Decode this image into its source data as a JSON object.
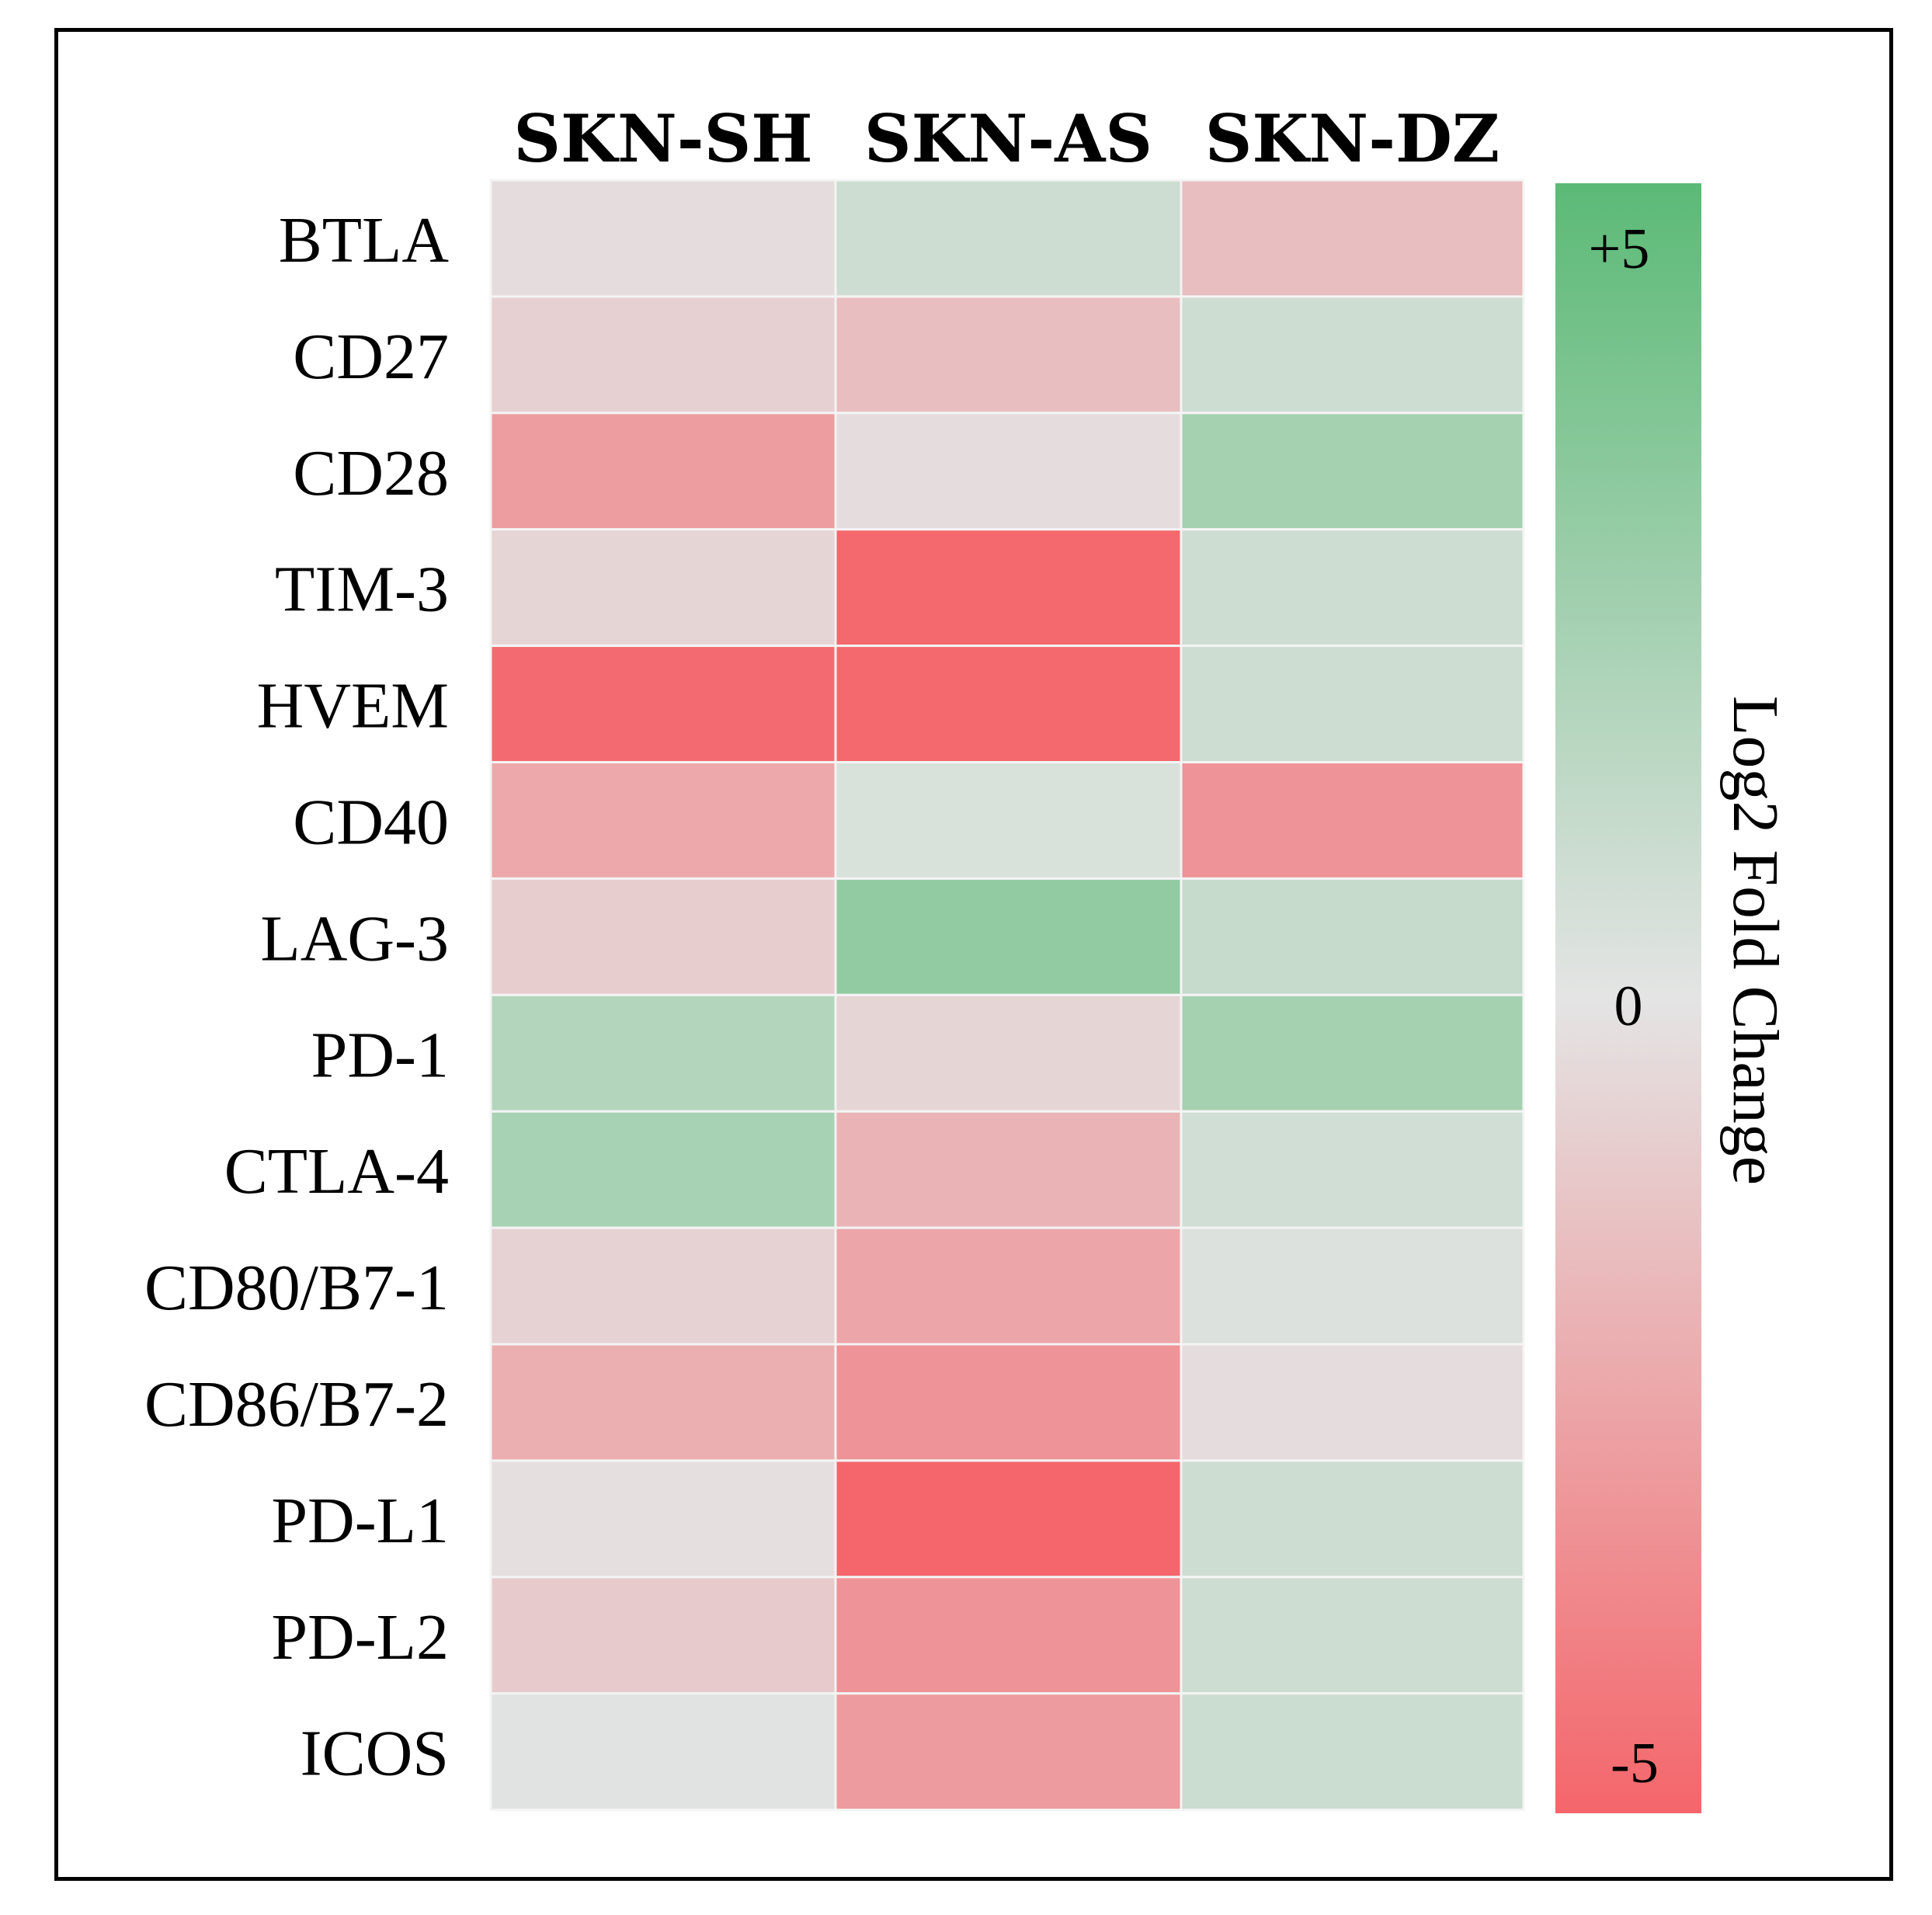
{
  "chart_data": {
    "type": "heatmap",
    "columns": [
      "SKN-SH",
      "SKN-AS",
      "SKN-DZ"
    ],
    "rows": [
      "BTLA",
      "CD27",
      "CD28",
      "TIM-3",
      "HVEM",
      "CD40",
      "LAG-3",
      "PD-1",
      "CTLA-4",
      "CD80/B7-1",
      "CD86/B7-2",
      "PD-L1",
      "PD-L2",
      "ICOS"
    ],
    "values": [
      [
        -0.3,
        0.8,
        -1.5
      ],
      [
        -0.8,
        -1.5,
        0.8
      ],
      [
        -2.8,
        -0.3,
        2.3
      ],
      [
        -0.6,
        -4.9,
        0.8
      ],
      [
        -4.8,
        -4.9,
        0.8
      ],
      [
        -2.4,
        0.4,
        -3.2
      ],
      [
        -0.9,
        3.0,
        1.1
      ],
      [
        1.8,
        -0.6,
        2.3
      ],
      [
        2.2,
        -1.9,
        0.7
      ],
      [
        -0.7,
        -2.5,
        0.3
      ],
      [
        -2.1,
        -3.2,
        -0.3
      ],
      [
        -0.2,
        -5.0,
        0.8
      ],
      [
        -1.0,
        -3.2,
        0.8
      ],
      [
        0.1,
        -2.9,
        0.9
      ]
    ],
    "colorbar": {
      "title": "Log2 Fold Change",
      "ticks": [
        "+5",
        "0",
        "-5"
      ],
      "range": [
        -5,
        5
      ],
      "color_low": "#f4666b",
      "color_mid": "#e4e4e4",
      "color_high": "#5bba76"
    }
  }
}
